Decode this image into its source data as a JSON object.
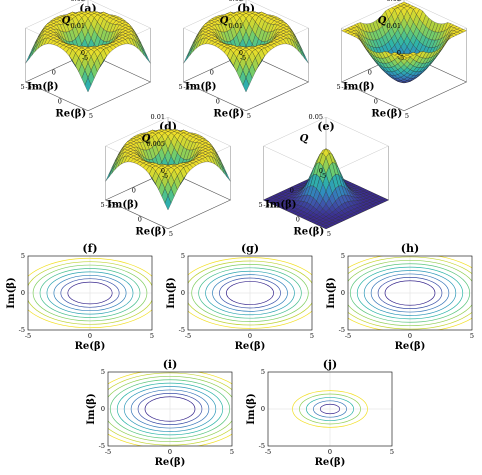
{
  "panels3d": [
    {
      "label": "(a)",
      "zticks": [
        "0",
        "0.01",
        "0.02"
      ],
      "zlabel": "Q",
      "xlabel": "Im(β)",
      "ylabel": "Re(β)",
      "xticks": [
        "5",
        "0",
        "-5"
      ],
      "yticks": [
        "-5",
        "0",
        "5"
      ],
      "shape": "rim"
    },
    {
      "label": "(b)",
      "zticks": [
        "0",
        "0.01",
        "0.02"
      ],
      "zlabel": "Q",
      "xlabel": "Im(β)",
      "ylabel": "Re(β)",
      "xticks": [
        "5",
        "0",
        "-5"
      ],
      "yticks": [
        "-5",
        "0",
        "5"
      ],
      "shape": "rim"
    },
    {
      "label": "(c)",
      "zticks": [
        "0",
        "0.01",
        "0.02"
      ],
      "zlabel": "Q",
      "xlabel": "Im(β)",
      "ylabel": "Re(β)",
      "xticks": [
        "5",
        "0",
        "-5"
      ],
      "yticks": [
        "-5",
        "0",
        "5"
      ],
      "shape": "rimwide"
    },
    {
      "label": "(d)",
      "zticks": [
        "0",
        "0.005",
        "0.01"
      ],
      "zlabel": "Q",
      "xlabel": "Im(β)",
      "ylabel": "Re(β)",
      "xticks": [
        "5",
        "0",
        "-5"
      ],
      "yticks": [
        "-5",
        "0",
        "5"
      ],
      "shape": "rim"
    },
    {
      "label": "(e)",
      "zticks": [
        "0",
        "0.05"
      ],
      "zlabel": "Q",
      "xlabel": "Im(β)",
      "ylabel": "Re(β)",
      "xticks": [
        "5",
        "0",
        "-5"
      ],
      "yticks": [
        "-5",
        "0",
        "5"
      ],
      "shape": "peak"
    }
  ],
  "panels2d": [
    {
      "label": "(f)",
      "xlabel": "Re(β)",
      "ylabel": "Im(β)",
      "xticks": [
        "-5",
        "0",
        "5"
      ],
      "yticks": [
        "5",
        "0",
        "-5"
      ],
      "levels": [
        1.6,
        2.1,
        2.6,
        3.1,
        3.6,
        4.1,
        4.6,
        5.1
      ]
    },
    {
      "label": "(g)",
      "xlabel": "Re(β)",
      "ylabel": "Im(β)",
      "xticks": [
        "-5",
        "0",
        "5"
      ],
      "yticks": [
        "5",
        "0",
        "-5"
      ],
      "levels": [
        1.7,
        2.2,
        2.7,
        3.2,
        3.7,
        4.2,
        4.7,
        5.2
      ]
    },
    {
      "label": "(h)",
      "xlabel": "Re(β)",
      "ylabel": "Im(β)",
      "xticks": [
        "-5",
        "0",
        "5"
      ],
      "yticks": [
        "5",
        "0",
        "-5"
      ],
      "levels": [
        1.8,
        2.3,
        2.8,
        3.3,
        3.8,
        4.3,
        4.8,
        5.3,
        5.8
      ]
    },
    {
      "label": "(i)",
      "xlabel": "Re(β)",
      "ylabel": "Im(β)",
      "xticks": [
        "-5",
        "0",
        "5"
      ],
      "yticks": [
        "5",
        "0",
        "-5"
      ],
      "levels": [
        1.8,
        2.3,
        2.8,
        3.3,
        3.8,
        4.3,
        4.8,
        5.3,
        5.8
      ]
    },
    {
      "label": "(j)",
      "xlabel": "Re(β)",
      "ylabel": "Im(β)",
      "xticks": [
        "-5",
        "0",
        "5"
      ],
      "yticks": [
        "5",
        "0",
        "-5"
      ],
      "levels": [
        0.7,
        1.2,
        1.7,
        2.2,
        2.7
      ]
    }
  ],
  "colormap": [
    "#3b2b8f",
    "#3e5db0",
    "#2f8fbf",
    "#2fb5a8",
    "#6ccc70",
    "#b7d23a",
    "#f2e028"
  ]
}
